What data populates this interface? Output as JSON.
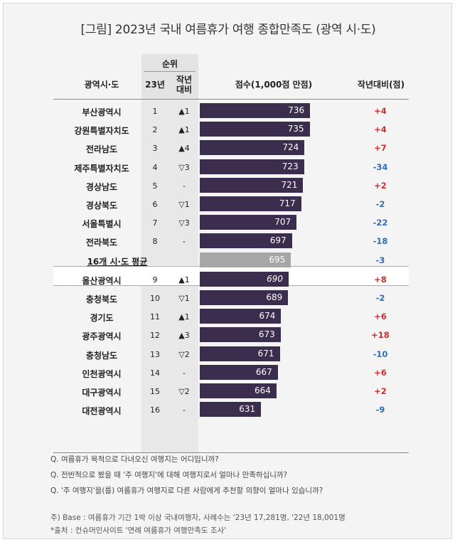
{
  "title": "[그림] 2023년 국내 여름휴가 여행 종합만족도 (광역 시·도)",
  "headers": {
    "region": "광역시·도",
    "rank_group": "순위",
    "rank_year": "23년",
    "rank_change_l1": "작년",
    "rank_change_l2": "대비",
    "score": "점수(1,000점 만점)",
    "diff": "작년대비(점)"
  },
  "chart_data": {
    "type": "bar",
    "orientation": "horizontal",
    "title": "[그림] 2023년 국내 여름휴가 여행 종합만족도 (광역 시·도)",
    "xlabel": "점수(1,000점 만점)",
    "categories": [
      "부산광역시",
      "강원특별자치도",
      "전라남도",
      "제주특별자치도",
      "경상남도",
      "경상북도",
      "서울특별시",
      "전라북도",
      "16개 시·도 평균",
      "울산광역시",
      "충청북도",
      "경기도",
      "광주광역시",
      "충청남도",
      "인천광역시",
      "대구광역시",
      "대전광역시"
    ],
    "values": [
      736,
      735,
      724,
      723,
      721,
      717,
      707,
      697,
      695,
      690,
      689,
      674,
      673,
      671,
      667,
      664,
      631
    ],
    "xlim": [
      500,
      760
    ],
    "rows": [
      {
        "region": "부산광역시",
        "rank": "1",
        "change": "▲1",
        "score": 736,
        "score_label": "736",
        "diff": "+4",
        "avg": false
      },
      {
        "region": "강원특별자치도",
        "rank": "2",
        "change": "▲1",
        "score": 735,
        "score_label": "735",
        "diff": "+4",
        "avg": false
      },
      {
        "region": "전라남도",
        "rank": "3",
        "change": "▲4",
        "score": 724,
        "score_label": "724",
        "diff": "+7",
        "avg": false
      },
      {
        "region": "제주특별자치도",
        "rank": "4",
        "change": "▽3",
        "score": 723,
        "score_label": "723",
        "diff": "-34",
        "avg": false
      },
      {
        "region": "경상남도",
        "rank": "5",
        "change": "-",
        "score": 721,
        "score_label": "721",
        "diff": "+2",
        "avg": false
      },
      {
        "region": "경상북도",
        "rank": "6",
        "change": "▽1",
        "score": 717,
        "score_label": "717",
        "diff": "-2",
        "avg": false
      },
      {
        "region": "서울특별시",
        "rank": "7",
        "change": "▽3",
        "score": 707,
        "score_label": "707",
        "diff": "-22",
        "avg": false
      },
      {
        "region": "전라북도",
        "rank": "8",
        "change": "-",
        "score": 697,
        "score_label": "697",
        "diff": "-18",
        "avg": false
      },
      {
        "region": "16개 시·도 평균",
        "rank": "",
        "change": "",
        "score": 695,
        "score_label": "695",
        "diff": "-3",
        "avg": true
      },
      {
        "region": "울산광역시",
        "rank": "9",
        "change": "▲1",
        "score": 690,
        "score_label": "690",
        "diff": "+8",
        "avg": false
      },
      {
        "region": "충청북도",
        "rank": "10",
        "change": "▽1",
        "score": 689,
        "score_label": "689",
        "diff": "-2",
        "avg": false
      },
      {
        "region": "경기도",
        "rank": "11",
        "change": "▲1",
        "score": 674,
        "score_label": "674",
        "diff": "+6",
        "avg": false
      },
      {
        "region": "광주광역시",
        "rank": "12",
        "change": "▲3",
        "score": 673,
        "score_label": "673",
        "diff": "+18",
        "avg": false
      },
      {
        "region": "충청남도",
        "rank": "13",
        "change": "▽2",
        "score": 671,
        "score_label": "671",
        "diff": "-10",
        "avg": false
      },
      {
        "region": "인천광역시",
        "rank": "14",
        "change": "-",
        "score": 667,
        "score_label": "667",
        "diff": "+6",
        "avg": false
      },
      {
        "region": "대구광역시",
        "rank": "15",
        "change": "▽2",
        "score": 664,
        "score_label": "664",
        "diff": "+2",
        "avg": false
      },
      {
        "region": "대전광역시",
        "rank": "16",
        "change": "-",
        "score": 631,
        "score_label": "631",
        "diff": "-9",
        "avg": false
      }
    ]
  },
  "notes": [
    "Q. 여름휴가 목적으로 다녀오신 여행지는 어디입니까?",
    "Q. 전반적으로 봤을 때 '주 여행지'에 대해 여행지로서 얼마나 만족하십니까?",
    "Q. '주 여행지'을(를) 여름휴가 여행지로 다른 사람에게 추천할 의향이 얼마나 있습니까?"
  ],
  "footnote_base": "주) Base : 여름휴가 기간 1박 이상 국내여행자, 사례수는 '23년 17,281명, '22년 18,001명",
  "footnote_source": "*출처 : 컨슈머인사이트 '연례 여름휴가 여행만족도 조사'",
  "colors": {
    "bar": "#3b2d4d",
    "avg_bar": "#a6a6a6",
    "positive": "#d22d2d",
    "negative": "#2f6fb5"
  }
}
